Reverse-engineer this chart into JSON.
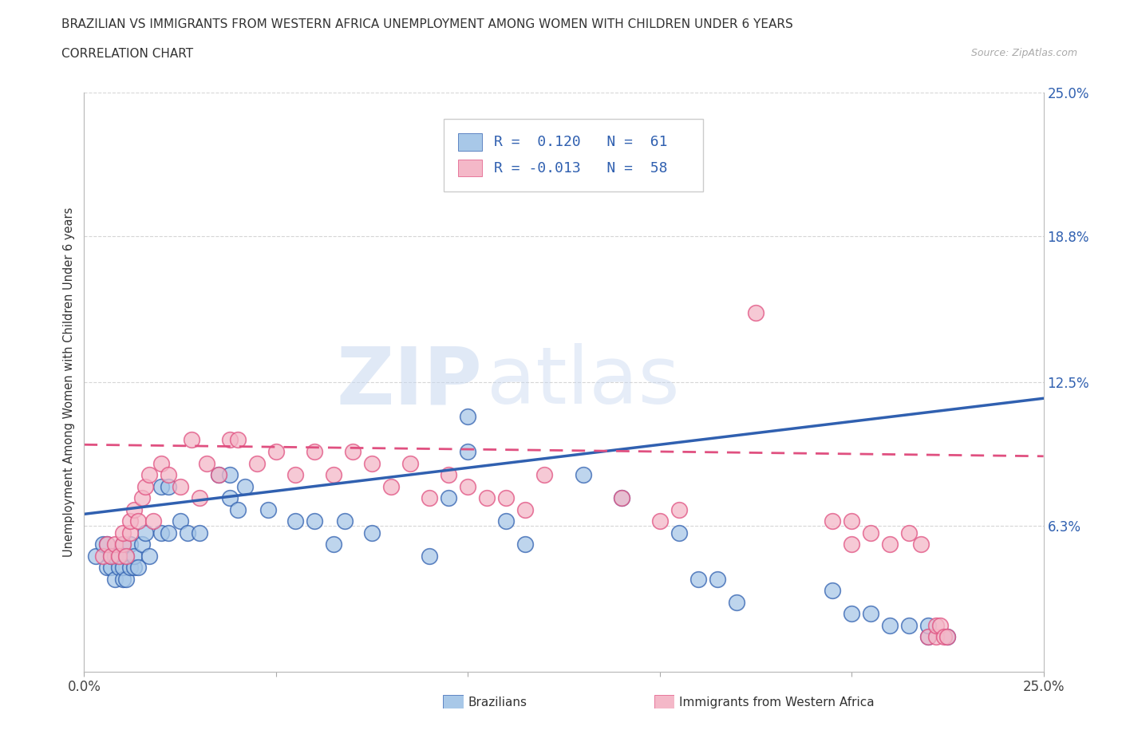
{
  "title_line1": "BRAZILIAN VS IMMIGRANTS FROM WESTERN AFRICA UNEMPLOYMENT AMONG WOMEN WITH CHILDREN UNDER 6 YEARS",
  "title_line2": "CORRELATION CHART",
  "source_text": "Source: ZipAtlas.com",
  "ylabel": "Unemployment Among Women with Children Under 6 years",
  "xlim": [
    0.0,
    0.25
  ],
  "ylim": [
    0.0,
    0.25
  ],
  "yticks": [
    0.063,
    0.125,
    0.188,
    0.25
  ],
  "ytick_labels": [
    "6.3%",
    "12.5%",
    "18.8%",
    "25.0%"
  ],
  "xtick_labels": [
    "0.0%",
    "25.0%"
  ],
  "watermark_zip": "ZIP",
  "watermark_atlas": "atlas",
  "legend_text1": "R =  0.120   N =  61",
  "legend_text2": "R = -0.013   N =  58",
  "legend_label1": "Brazilians",
  "legend_label2": "Immigrants from Western Africa",
  "color_blue": "#a8c8e8",
  "color_pink": "#f4b8c8",
  "color_blue_dark": "#3060b0",
  "color_pink_dark": "#e05080",
  "grid_color": "#cccccc",
  "blue_trend_start": 0.068,
  "blue_trend_end": 0.118,
  "pink_trend_start": 0.098,
  "pink_trend_end": 0.093,
  "blue_x": [
    0.003,
    0.005,
    0.006,
    0.006,
    0.007,
    0.007,
    0.008,
    0.008,
    0.009,
    0.009,
    0.01,
    0.01,
    0.01,
    0.011,
    0.011,
    0.012,
    0.012,
    0.013,
    0.013,
    0.014,
    0.015,
    0.016,
    0.017,
    0.02,
    0.02,
    0.022,
    0.022,
    0.025,
    0.027,
    0.03,
    0.035,
    0.038,
    0.038,
    0.04,
    0.042,
    0.048,
    0.055,
    0.06,
    0.065,
    0.068,
    0.075,
    0.09,
    0.095,
    0.1,
    0.1,
    0.11,
    0.115,
    0.13,
    0.14,
    0.155,
    0.16,
    0.165,
    0.17,
    0.195,
    0.2,
    0.205,
    0.21,
    0.215,
    0.22,
    0.22,
    0.225
  ],
  "blue_y": [
    0.05,
    0.055,
    0.045,
    0.055,
    0.045,
    0.05,
    0.04,
    0.05,
    0.045,
    0.05,
    0.04,
    0.045,
    0.055,
    0.04,
    0.05,
    0.045,
    0.055,
    0.045,
    0.05,
    0.045,
    0.055,
    0.06,
    0.05,
    0.06,
    0.08,
    0.06,
    0.08,
    0.065,
    0.06,
    0.06,
    0.085,
    0.075,
    0.085,
    0.07,
    0.08,
    0.07,
    0.065,
    0.065,
    0.055,
    0.065,
    0.06,
    0.05,
    0.075,
    0.11,
    0.095,
    0.065,
    0.055,
    0.085,
    0.075,
    0.06,
    0.04,
    0.04,
    0.03,
    0.035,
    0.025,
    0.025,
    0.02,
    0.02,
    0.015,
    0.02,
    0.015
  ],
  "pink_x": [
    0.005,
    0.006,
    0.007,
    0.008,
    0.009,
    0.01,
    0.01,
    0.011,
    0.012,
    0.012,
    0.013,
    0.014,
    0.015,
    0.016,
    0.017,
    0.018,
    0.02,
    0.022,
    0.025,
    0.028,
    0.03,
    0.032,
    0.035,
    0.038,
    0.04,
    0.045,
    0.05,
    0.055,
    0.06,
    0.065,
    0.07,
    0.075,
    0.08,
    0.085,
    0.09,
    0.095,
    0.1,
    0.105,
    0.11,
    0.115,
    0.12,
    0.14,
    0.15,
    0.155,
    0.175,
    0.195,
    0.2,
    0.2,
    0.205,
    0.21,
    0.215,
    0.218,
    0.22,
    0.222,
    0.222,
    0.223,
    0.224,
    0.225
  ],
  "pink_y": [
    0.05,
    0.055,
    0.05,
    0.055,
    0.05,
    0.055,
    0.06,
    0.05,
    0.06,
    0.065,
    0.07,
    0.065,
    0.075,
    0.08,
    0.085,
    0.065,
    0.09,
    0.085,
    0.08,
    0.1,
    0.075,
    0.09,
    0.085,
    0.1,
    0.1,
    0.09,
    0.095,
    0.085,
    0.095,
    0.085,
    0.095,
    0.09,
    0.08,
    0.09,
    0.075,
    0.085,
    0.08,
    0.075,
    0.075,
    0.07,
    0.085,
    0.075,
    0.065,
    0.07,
    0.155,
    0.065,
    0.055,
    0.065,
    0.06,
    0.055,
    0.06,
    0.055,
    0.015,
    0.015,
    0.02,
    0.02,
    0.015,
    0.015
  ]
}
